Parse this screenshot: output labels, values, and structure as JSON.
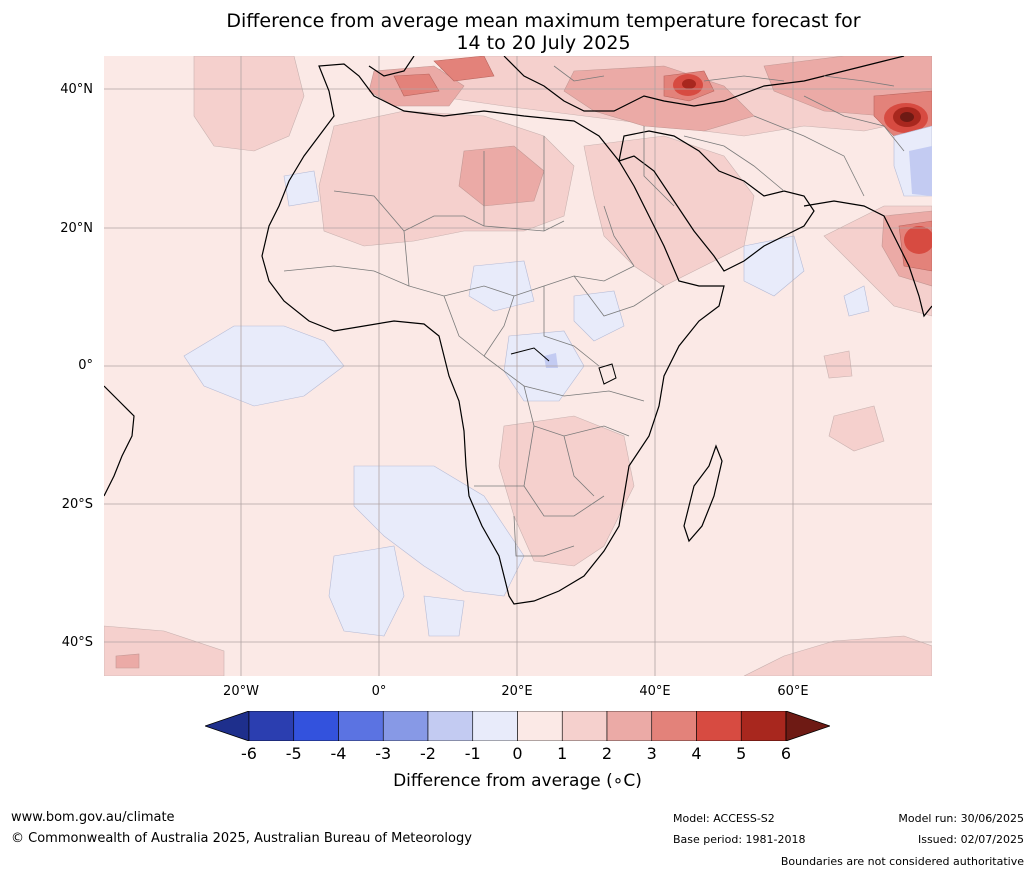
{
  "title": {
    "line1": "Difference from average mean maximum temperature forecast for",
    "line2": "14 to 20 July 2025"
  },
  "axes": {
    "lat_labels": [
      "40°N",
      "20°N",
      "0°",
      "20°S",
      "40°S"
    ],
    "lon_labels": [
      "20°W",
      "0°",
      "20°E",
      "40°E",
      "60°E"
    ],
    "lat_range": [
      -45,
      45
    ],
    "lon_range": [
      -40,
      80
    ],
    "grid": true
  },
  "colorbar": {
    "ticks": [
      "-6",
      "-5",
      "-4",
      "-3",
      "-2",
      "-1",
      "0",
      "1",
      "2",
      "3",
      "4",
      "5",
      "6"
    ],
    "label": "Difference from average (∘C)",
    "colors": [
      "#1e2f8c",
      "#2b3eb0",
      "#3352dd",
      "#5b73e2",
      "#8799e6",
      "#c3cbf2",
      "#e8ebfa",
      "#fbe9e6",
      "#f5d0cd",
      "#ebaaa6",
      "#e3827a",
      "#d74b41",
      "#a8271e",
      "#6e1a14"
    ]
  },
  "footer": {
    "website": "www.bom.gov.au/climate",
    "copyright": "© Commonwealth of Australia 2025, Australian Bureau of Meteorology",
    "model": "Model: ACCESS-S2",
    "base_period": "Base period: 1981-2018",
    "model_run": "Model run: 30/06/2025",
    "issued": "Issued: 02/07/2025",
    "disclaimer": "Boundaries are not considered authoritative"
  }
}
